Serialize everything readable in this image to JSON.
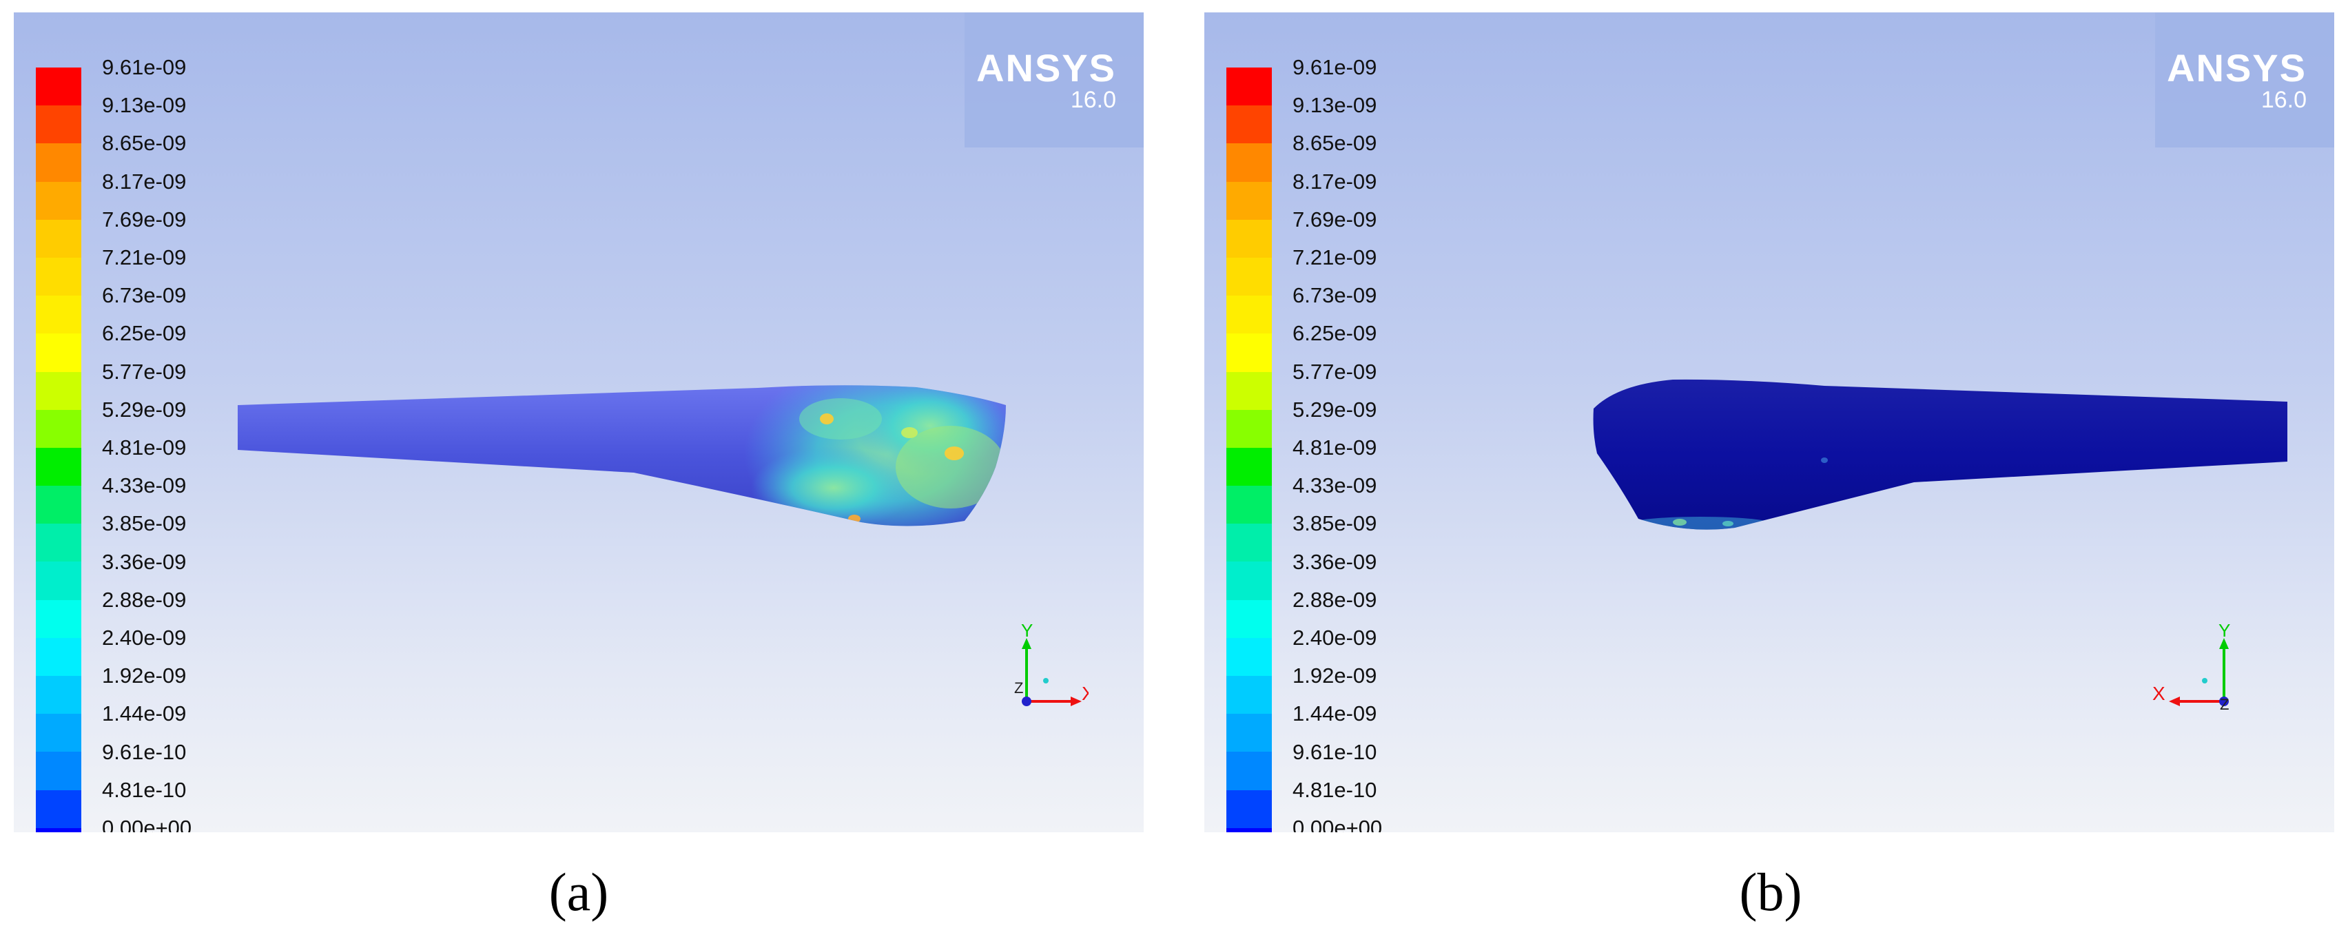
{
  "colorbar": {
    "labels": [
      "9.61e-09",
      "9.13e-09",
      "8.65e-09",
      "8.17e-09",
      "7.69e-09",
      "7.21e-09",
      "6.73e-09",
      "6.25e-09",
      "5.77e-09",
      "5.29e-09",
      "4.81e-09",
      "4.33e-09",
      "3.85e-09",
      "3.36e-09",
      "2.88e-09",
      "2.40e-09",
      "1.92e-09",
      "1.44e-09",
      "9.61e-10",
      "4.81e-10",
      "0.00e+00"
    ],
    "colors": [
      "#ff0000",
      "#ff4400",
      "#ff8800",
      "#ffaa00",
      "#ffcc00",
      "#ffdd00",
      "#ffee00",
      "#ffff00",
      "#ccff00",
      "#88ff00",
      "#00ee00",
      "#00ee66",
      "#00eeaa",
      "#00eecc",
      "#00ffee",
      "#00eeff",
      "#00ccff",
      "#00aaff",
      "#0088ff",
      "#0044ff",
      "#0000ff"
    ]
  },
  "watermark": {
    "name": "ANSYS",
    "version": "16.0"
  },
  "panels": [
    {
      "caption": "(a)",
      "axis_x": "X",
      "axis_y": "Y",
      "axis_z": "Z"
    },
    {
      "caption": "(b)",
      "axis_x": "X",
      "axis_y": "Y",
      "axis_z": "Z"
    }
  ]
}
